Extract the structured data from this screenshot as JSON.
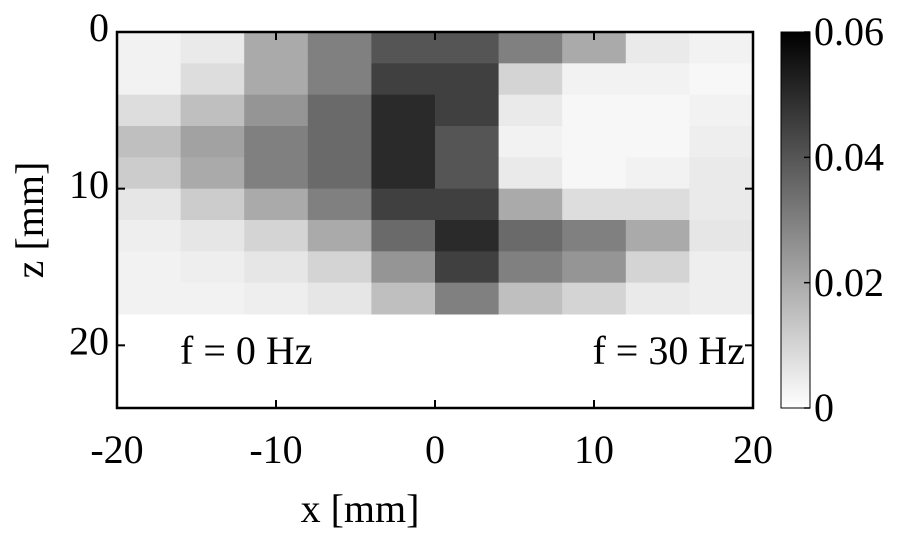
{
  "chart_data": {
    "type": "heatmap",
    "xlabel": "x [mm]",
    "ylabel": "z [mm]",
    "x": [
      -18,
      -14,
      -10,
      -6,
      -2,
      2,
      6,
      10,
      14,
      18
    ],
    "y": [
      1,
      3,
      5,
      7,
      9,
      11,
      13,
      15,
      17
    ],
    "values": [
      [
        0.003,
        0.005,
        0.02,
        0.03,
        0.04,
        0.04,
        0.03,
        0.02,
        0.005,
        0.003
      ],
      [
        0.003,
        0.008,
        0.02,
        0.03,
        0.045,
        0.045,
        0.01,
        0.003,
        0.003,
        0.002
      ],
      [
        0.008,
        0.015,
        0.025,
        0.035,
        0.05,
        0.045,
        0.005,
        0.002,
        0.002,
        0.003
      ],
      [
        0.015,
        0.022,
        0.03,
        0.035,
        0.05,
        0.04,
        0.003,
        0.002,
        0.002,
        0.004
      ],
      [
        0.012,
        0.02,
        0.03,
        0.035,
        0.05,
        0.04,
        0.005,
        0.002,
        0.003,
        0.005
      ],
      [
        0.006,
        0.012,
        0.02,
        0.03,
        0.045,
        0.045,
        0.02,
        0.008,
        0.008,
        0.005
      ],
      [
        0.004,
        0.006,
        0.01,
        0.02,
        0.035,
        0.05,
        0.035,
        0.03,
        0.02,
        0.006
      ],
      [
        0.003,
        0.004,
        0.006,
        0.01,
        0.025,
        0.045,
        0.03,
        0.025,
        0.01,
        0.004
      ],
      [
        0.003,
        0.003,
        0.004,
        0.006,
        0.015,
        0.03,
        0.015,
        0.01,
        0.005,
        0.004
      ]
    ],
    "xlim": [
      -20,
      20
    ],
    "ylim": [
      0,
      24
    ],
    "y_inverted": true,
    "xticks": [
      -20,
      -10,
      0,
      10,
      20
    ],
    "yticks": [
      0,
      10,
      20
    ],
    "colormap": "gray_r",
    "colorbar": {
      "lim": [
        0,
        0.06
      ],
      "ticks": [
        0,
        0.02,
        0.04,
        0.06
      ]
    },
    "annotations": [
      "f = 0 Hz",
      "f = 30 Hz"
    ]
  }
}
